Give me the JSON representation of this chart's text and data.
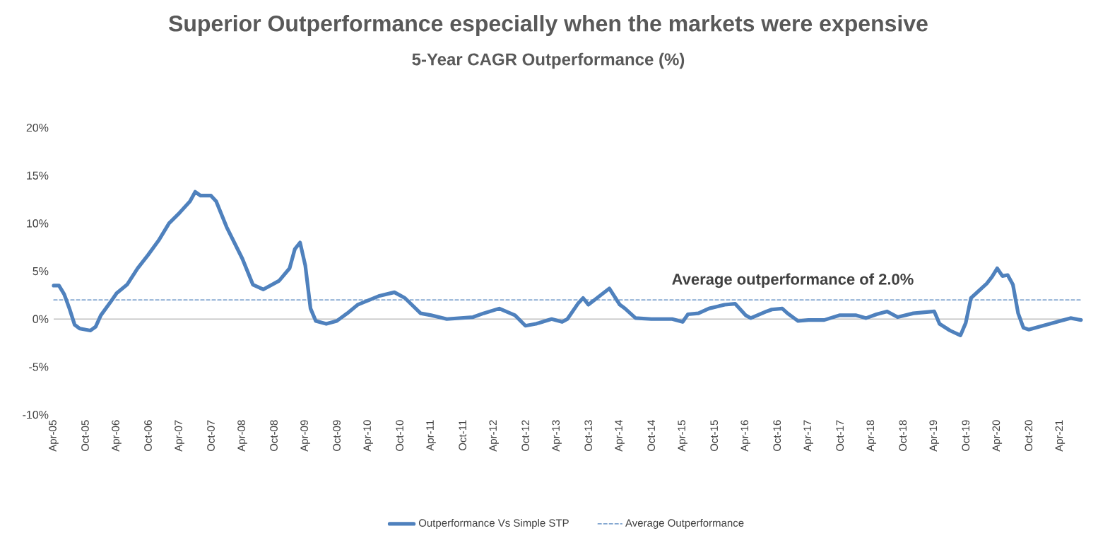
{
  "chart_data": {
    "type": "line",
    "title": "Superior Outperformance especially when the markets were expensive",
    "subtitle": "5-Year CAGR Outperformance (%)",
    "xlim": [
      "2005-04",
      "2021-08"
    ],
    "xticks": [
      {
        "value": "2005-04",
        "label": "Apr-05"
      },
      {
        "value": "2005-10",
        "label": "Oct-05"
      },
      {
        "value": "2006-04",
        "label": "Apr-06"
      },
      {
        "value": "2006-10",
        "label": "Oct-06"
      },
      {
        "value": "2007-04",
        "label": "Apr-07"
      },
      {
        "value": "2007-10",
        "label": "Oct-07"
      },
      {
        "value": "2008-04",
        "label": "Apr-08"
      },
      {
        "value": "2008-10",
        "label": "Oct-08"
      },
      {
        "value": "2009-04",
        "label": "Apr-09"
      },
      {
        "value": "2009-10",
        "label": "Oct-09"
      },
      {
        "value": "2010-04",
        "label": "Apr-10"
      },
      {
        "value": "2010-10",
        "label": "Oct-10"
      },
      {
        "value": "2011-04",
        "label": "Apr-11"
      },
      {
        "value": "2011-10",
        "label": "Oct-11"
      },
      {
        "value": "2012-04",
        "label": "Apr-12"
      },
      {
        "value": "2012-10",
        "label": "Oct-12"
      },
      {
        "value": "2013-04",
        "label": "Apr-13"
      },
      {
        "value": "2013-10",
        "label": "Oct-13"
      },
      {
        "value": "2014-04",
        "label": "Apr-14"
      },
      {
        "value": "2014-10",
        "label": "Oct-14"
      },
      {
        "value": "2015-04",
        "label": "Apr-15"
      },
      {
        "value": "2015-10",
        "label": "Oct-15"
      },
      {
        "value": "2016-04",
        "label": "Apr-16"
      },
      {
        "value": "2016-10",
        "label": "Oct-16"
      },
      {
        "value": "2017-04",
        "label": "Apr-17"
      },
      {
        "value": "2017-10",
        "label": "Oct-17"
      },
      {
        "value": "2018-04",
        "label": "Apr-18"
      },
      {
        "value": "2018-10",
        "label": "Oct-18"
      },
      {
        "value": "2019-04",
        "label": "Apr-19"
      },
      {
        "value": "2019-10",
        "label": "Oct-19"
      },
      {
        "value": "2020-04",
        "label": "Apr-20"
      },
      {
        "value": "2020-10",
        "label": "Oct-20"
      },
      {
        "value": "2021-04",
        "label": "Apr-21"
      }
    ],
    "ylim": [
      -10,
      20
    ],
    "yticks": [
      {
        "value": -10,
        "label": "-10%"
      },
      {
        "value": -5,
        "label": "-5%"
      },
      {
        "value": 0,
        "label": "0%"
      },
      {
        "value": 5,
        "label": "5%"
      },
      {
        "value": 10,
        "label": "10%"
      },
      {
        "value": 15,
        "label": "15%"
      },
      {
        "value": 20,
        "label": "20%"
      }
    ],
    "legend": "bottom",
    "series": [
      {
        "name": "Outperformance Vs Simple STP",
        "color": "#4f81bd",
        "line_style": "solid",
        "x": [
          "2005-04",
          "2005-05",
          "2005-06",
          "2005-07",
          "2005-08",
          "2005-09",
          "2005-11",
          "2005-12",
          "2006-01",
          "2006-03",
          "2006-04",
          "2006-06",
          "2006-08",
          "2006-10",
          "2006-12",
          "2007-02",
          "2007-04",
          "2007-06",
          "2007-07",
          "2007-08",
          "2007-10",
          "2007-11",
          "2008-01",
          "2008-04",
          "2008-06",
          "2008-08",
          "2008-09",
          "2008-11",
          "2009-01",
          "2009-02",
          "2009-03",
          "2009-04",
          "2009-05",
          "2009-06",
          "2009-08",
          "2009-10",
          "2009-12",
          "2010-02",
          "2010-06",
          "2010-09",
          "2010-11",
          "2011-02",
          "2011-04",
          "2011-07",
          "2011-12",
          "2012-02",
          "2012-05",
          "2012-08",
          "2012-10",
          "2012-12",
          "2013-03",
          "2013-05",
          "2013-06",
          "2013-08",
          "2013-09",
          "2013-10",
          "2014-02",
          "2014-04",
          "2014-05",
          "2014-07",
          "2014-10",
          "2015-02",
          "2015-04",
          "2015-05",
          "2015-07",
          "2015-09",
          "2015-12",
          "2016-02",
          "2016-04",
          "2016-05",
          "2016-08",
          "2016-09",
          "2016-11",
          "2016-12",
          "2017-02",
          "2017-04",
          "2017-07",
          "2017-10",
          "2018-01",
          "2018-03",
          "2018-05",
          "2018-07",
          "2018-09",
          "2018-12",
          "2019-04",
          "2019-05",
          "2019-07",
          "2019-09",
          "2019-10",
          "2019-11",
          "2020-02",
          "2020-03",
          "2020-04",
          "2020-05",
          "2020-06",
          "2020-07",
          "2020-08",
          "2020-09",
          "2020-10",
          "2021-04",
          "2021-06",
          "2021-08"
        ],
        "values": [
          3.5,
          3.5,
          2.6,
          1.1,
          -0.6,
          -1.0,
          -1.2,
          -0.8,
          0.4,
          1.9,
          2.7,
          3.6,
          5.3,
          6.7,
          8.2,
          10.0,
          11.1,
          12.3,
          13.3,
          12.9,
          12.9,
          12.3,
          9.6,
          6.3,
          3.6,
          3.1,
          3.4,
          4.0,
          5.3,
          7.3,
          8.0,
          5.6,
          1.1,
          -0.2,
          -0.5,
          -0.2,
          0.6,
          1.5,
          2.4,
          2.8,
          2.2,
          0.6,
          0.4,
          0.0,
          0.2,
          0.6,
          1.1,
          0.4,
          -0.7,
          -0.5,
          0.0,
          -0.3,
          0.0,
          1.6,
          2.2,
          1.5,
          3.2,
          1.5,
          1.1,
          0.1,
          0.0,
          0.0,
          -0.3,
          0.5,
          0.6,
          1.1,
          1.5,
          1.6,
          0.4,
          0.1,
          0.8,
          1.0,
          1.1,
          0.6,
          -0.2,
          -0.1,
          -0.1,
          0.4,
          0.4,
          0.1,
          0.5,
          0.8,
          0.2,
          0.6,
          0.8,
          -0.5,
          -1.2,
          -1.7,
          -0.4,
          2.2,
          3.7,
          4.4,
          5.3,
          4.5,
          4.6,
          3.6,
          0.6,
          -0.9,
          -1.1,
          -0.2,
          0.1,
          -0.1
        ]
      },
      {
        "name": "Average Outperformance",
        "color": "#4f81bd",
        "line_style": "dashed",
        "x": [
          "2005-04",
          "2021-08"
        ],
        "values": [
          2.0,
          2.0
        ]
      }
    ],
    "annotations": [
      {
        "text": "Average outperformance of 2.0%",
        "x": "2017-01",
        "y": 2.0
      }
    ]
  }
}
